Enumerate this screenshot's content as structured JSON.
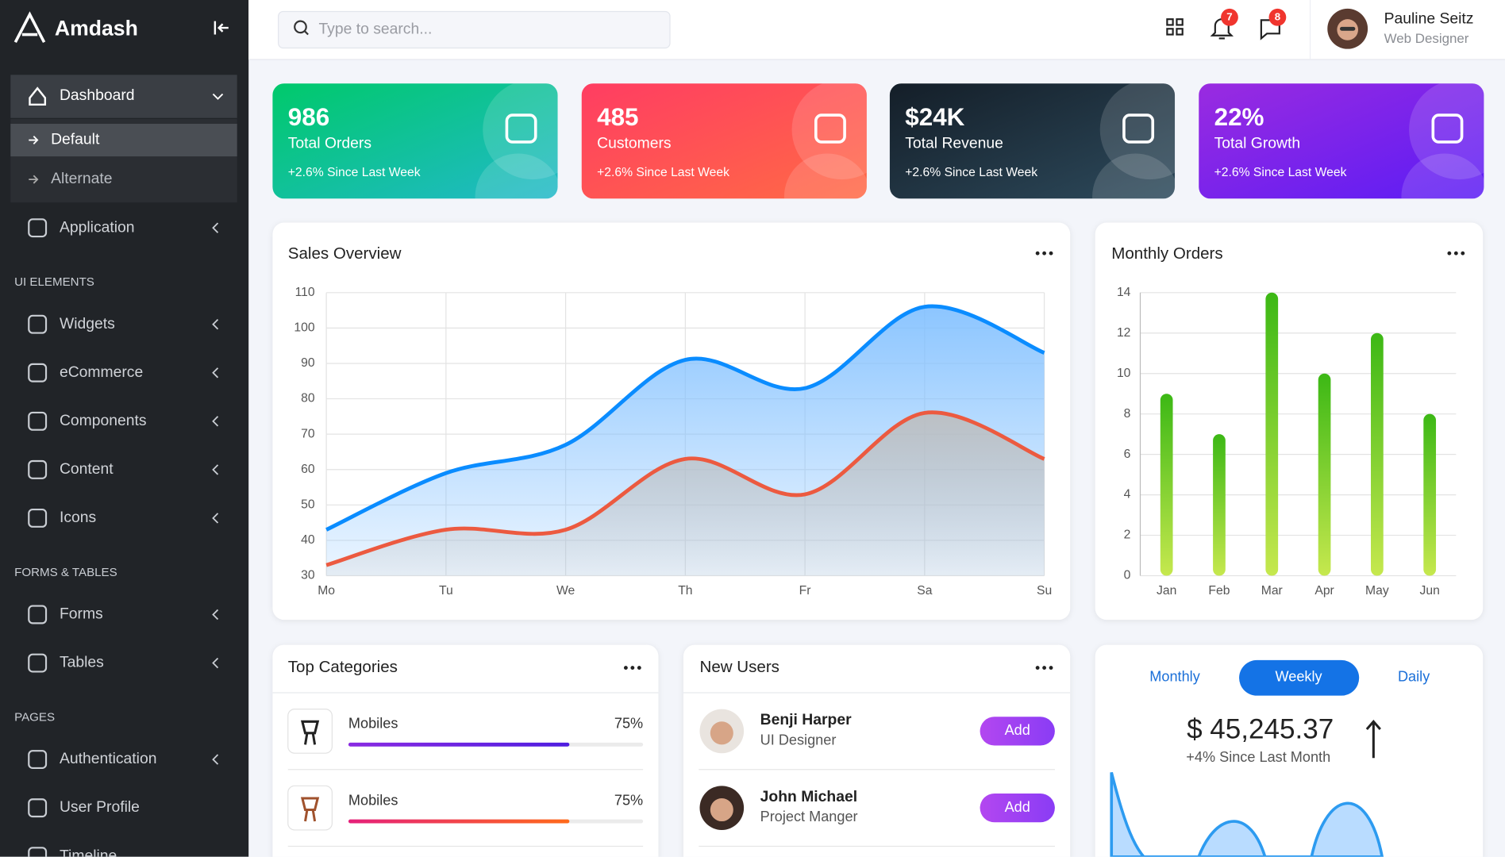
{
  "sidebar": {
    "brand": "Amdash",
    "nav": [
      {
        "label": "Dashboard",
        "children": [
          "Default",
          "Alternate"
        ]
      },
      {
        "label": "Application",
        "submenu": true
      },
      {
        "heading": "UI ELEMENTS"
      },
      {
        "label": "Widgets",
        "submenu": true
      },
      {
        "label": "eCommerce",
        "submenu": true
      },
      {
        "label": "Components",
        "submenu": true
      },
      {
        "label": "Content",
        "submenu": true
      },
      {
        "label": "Icons",
        "submenu": true
      },
      {
        "heading": "FORMS & TABLES"
      },
      {
        "label": "Forms",
        "submenu": true
      },
      {
        "label": "Tables",
        "submenu": true
      },
      {
        "heading": "PAGES"
      },
      {
        "label": "Authentication",
        "submenu": true
      },
      {
        "label": "User Profile"
      },
      {
        "label": "Timeline"
      }
    ]
  },
  "header": {
    "search_placeholder": "Type to search...",
    "notifications": "7",
    "messages": "8",
    "user": {
      "name": "Pauline Seitz",
      "role": "Web Designer"
    }
  },
  "stats": [
    {
      "value": "986",
      "label": "Total Orders",
      "note": "+2.6% Since Last Week"
    },
    {
      "value": "485",
      "label": "Customers",
      "note": "+2.6% Since Last Week"
    },
    {
      "value": "$24K",
      "label": "Total Revenue",
      "note": "+2.6% Since Last Week"
    },
    {
      "value": "22%",
      "label": "Total Growth",
      "note": "+2.6% Since Last Week"
    }
  ],
  "sales_overview": {
    "type": "line",
    "title": "Sales Overview",
    "categories": [
      "Mo",
      "Tu",
      "We",
      "Th",
      "Fr",
      "Sa",
      "Su"
    ],
    "series": [
      {
        "color": "#0a8cff",
        "fill": "#7fbfff",
        "values": [
          43,
          59,
          67,
          91,
          83,
          106,
          93
        ]
      },
      {
        "color": "#ec5a40",
        "fill": "#bdbdbd",
        "values": [
          33,
          43,
          43,
          63,
          53,
          76,
          63
        ]
      }
    ],
    "ylim": [
      30,
      110
    ],
    "yticks": [
      30,
      40,
      50,
      60,
      70,
      80,
      90,
      100,
      110
    ],
    "grid": true
  },
  "monthly_orders": {
    "type": "bar",
    "title": "Monthly Orders",
    "categories": [
      "Jan",
      "Feb",
      "Mar",
      "Apr",
      "May",
      "Jun"
    ],
    "values": [
      9,
      7,
      14,
      10,
      12,
      8
    ],
    "color": "#3cb815",
    "ylim": [
      0,
      14
    ],
    "yticks": [
      0,
      2,
      4,
      6,
      8,
      10,
      12,
      14
    ],
    "grid": true
  },
  "top_categories": {
    "title": "Top Categories",
    "items": [
      {
        "name": "Mobiles",
        "value": 75,
        "value_label": "75%"
      },
      {
        "name": "Mobiles",
        "value": 75,
        "value_label": "75%"
      }
    ]
  },
  "new_users": {
    "title": "New Users",
    "users": [
      {
        "name": "Benji Harper",
        "role": "UI Designer",
        "action": "Add"
      },
      {
        "name": "John Michael",
        "role": "Project Manger",
        "action": "Add"
      }
    ]
  },
  "revenue": {
    "tabs": [
      "Monthly",
      "Weekly",
      "Daily"
    ],
    "active_tab": 1,
    "amount": "$ 45,245.37",
    "note": "+4% Since Last Month"
  }
}
